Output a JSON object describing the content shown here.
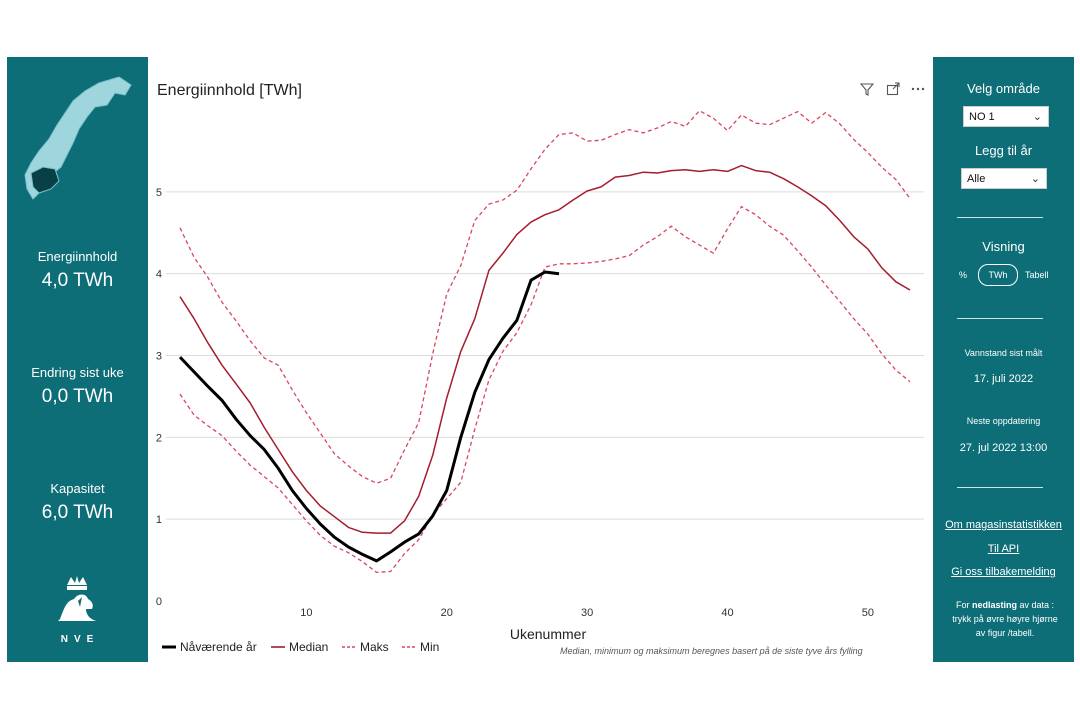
{
  "left_panel": {
    "kpis": [
      {
        "label": "Energiinnhold",
        "value": "4,0 TWh"
      },
      {
        "label": "Endring sist uke",
        "value": "0,0 TWh"
      },
      {
        "label": "Kapasitet",
        "value": "6,0 TWh"
      }
    ],
    "logo_text": "NVE"
  },
  "right_panel": {
    "area_label": "Velg område",
    "area_value": "NO 1",
    "year_label": "Legg til år",
    "year_value": "Alle",
    "view_label": "Visning",
    "view_options": [
      "%",
      "TWh",
      "Tabell"
    ],
    "measured_label": "Vannstand sist målt",
    "measured_date": "17. juli 2022",
    "next_update_label": "Neste oppdatering",
    "next_update_date": "27. jul 2022 13:00",
    "links": [
      "Om magasinstatistikken",
      "Til API",
      "Gi oss tilbakemelding"
    ],
    "download_note_prefix": "For ",
    "download_note_bold": "nedlasting",
    "download_note_suffix": " av data : trykk på øvre høyre hjørne av figur /tabell."
  },
  "chart_data": {
    "type": "line",
    "title": "Energiinnhold [TWh]",
    "xlabel": "Ukenummer",
    "ylabel": "",
    "xlim": [
      0,
      54
    ],
    "ylim": [
      0,
      6
    ],
    "xticks": [
      10,
      20,
      30,
      40,
      50
    ],
    "yticks": [
      0,
      1,
      2,
      3,
      4,
      5
    ],
    "footnote": "Median, minimum og maksimum beregnes basert på de siste tyve års fylling",
    "series": [
      {
        "name": "Nåværende år",
        "color": "#000000",
        "dash": false,
        "width": 3,
        "x": [
          1,
          3,
          4,
          5,
          6,
          7,
          8,
          9,
          10,
          11,
          12,
          13,
          14,
          15,
          16,
          17,
          18,
          19,
          20,
          21,
          22,
          23,
          24,
          25,
          26,
          27,
          28
        ],
        "y": [
          2.98,
          2.62,
          2.45,
          2.22,
          2.02,
          1.85,
          1.62,
          1.35,
          1.13,
          0.94,
          0.78,
          0.66,
          0.57,
          0.49,
          0.6,
          0.72,
          0.82,
          1.04,
          1.35,
          2.0,
          2.55,
          2.95,
          3.21,
          3.43,
          3.92,
          4.02,
          4.0
        ]
      },
      {
        "name": "Median",
        "color": "#a61c2e",
        "dash": false,
        "width": 1.5,
        "x": [
          1,
          2,
          3,
          4,
          5,
          6,
          7,
          8,
          9,
          10,
          11,
          12,
          13,
          14,
          15,
          16,
          17,
          18,
          19,
          20,
          21,
          22,
          23,
          24,
          25,
          26,
          27,
          28,
          29,
          30,
          31,
          32,
          33,
          34,
          35,
          36,
          37,
          38,
          39,
          40,
          41,
          42,
          43,
          44,
          45,
          46,
          47,
          48,
          49,
          50,
          51,
          52,
          53
        ],
        "y": [
          3.72,
          3.45,
          3.15,
          2.88,
          2.65,
          2.42,
          2.12,
          1.85,
          1.58,
          1.35,
          1.16,
          1.03,
          0.9,
          0.84,
          0.83,
          0.83,
          0.98,
          1.28,
          1.78,
          2.48,
          3.05,
          3.45,
          4.04,
          4.25,
          4.48,
          4.63,
          4.72,
          4.78,
          4.9,
          5.01,
          5.06,
          5.18,
          5.2,
          5.24,
          5.23,
          5.26,
          5.27,
          5.25,
          5.27,
          5.25,
          5.32,
          5.26,
          5.24,
          5.16,
          5.06,
          4.95,
          4.83,
          4.65,
          4.45,
          4.3,
          4.07,
          3.9,
          3.8
        ]
      },
      {
        "name": "Maks",
        "color": "#d9455e",
        "dash": true,
        "width": 1.3,
        "x": [
          1,
          2,
          3,
          4,
          5,
          6,
          7,
          8,
          9,
          10,
          11,
          12,
          13,
          14,
          15,
          16,
          17,
          18,
          19,
          20,
          21,
          22,
          23,
          24,
          25,
          26,
          27,
          28,
          29,
          30,
          31,
          32,
          33,
          34,
          35,
          36,
          37,
          38,
          39,
          40,
          41,
          42,
          43,
          44,
          45,
          46,
          47,
          48,
          49,
          50,
          51,
          52,
          53
        ],
        "y": [
          4.56,
          4.2,
          3.95,
          3.65,
          3.42,
          3.18,
          2.97,
          2.88,
          2.58,
          2.3,
          2.05,
          1.8,
          1.65,
          1.52,
          1.44,
          1.5,
          1.85,
          2.18,
          3.02,
          3.75,
          4.1,
          4.65,
          4.85,
          4.9,
          5.02,
          5.28,
          5.52,
          5.7,
          5.72,
          5.62,
          5.63,
          5.7,
          5.76,
          5.72,
          5.78,
          5.86,
          5.8,
          5.99,
          5.9,
          5.75,
          5.94,
          5.84,
          5.82,
          5.9,
          5.98,
          5.84,
          5.97,
          5.83,
          5.64,
          5.48,
          5.3,
          5.15,
          4.92
        ]
      },
      {
        "name": "Min",
        "color": "#d9455e",
        "dash": true,
        "width": 1.3,
        "x": [
          1,
          2,
          3,
          4,
          5,
          6,
          7,
          8,
          9,
          10,
          11,
          12,
          13,
          14,
          15,
          16,
          17,
          18,
          19,
          20,
          21,
          22,
          23,
          24,
          25,
          26,
          27,
          28,
          29,
          30,
          31,
          32,
          33,
          34,
          35,
          36,
          37,
          38,
          39,
          40,
          41,
          42,
          43,
          44,
          45,
          46,
          47,
          48,
          49,
          50,
          51,
          52,
          53
        ],
        "y": [
          2.53,
          2.27,
          2.14,
          2.02,
          1.83,
          1.66,
          1.52,
          1.38,
          1.18,
          0.98,
          0.8,
          0.67,
          0.59,
          0.48,
          0.35,
          0.36,
          0.58,
          0.75,
          1.05,
          1.25,
          1.45,
          2.1,
          2.7,
          3.05,
          3.28,
          3.62,
          4.08,
          4.12,
          4.12,
          4.13,
          4.15,
          4.18,
          4.22,
          4.35,
          4.45,
          4.58,
          4.45,
          4.35,
          4.25,
          4.55,
          4.82,
          4.72,
          4.58,
          4.47,
          4.28,
          4.08,
          3.86,
          3.66,
          3.45,
          3.26,
          3.02,
          2.82,
          2.68
        ]
      }
    ],
    "legend_position": "bottom-left"
  }
}
